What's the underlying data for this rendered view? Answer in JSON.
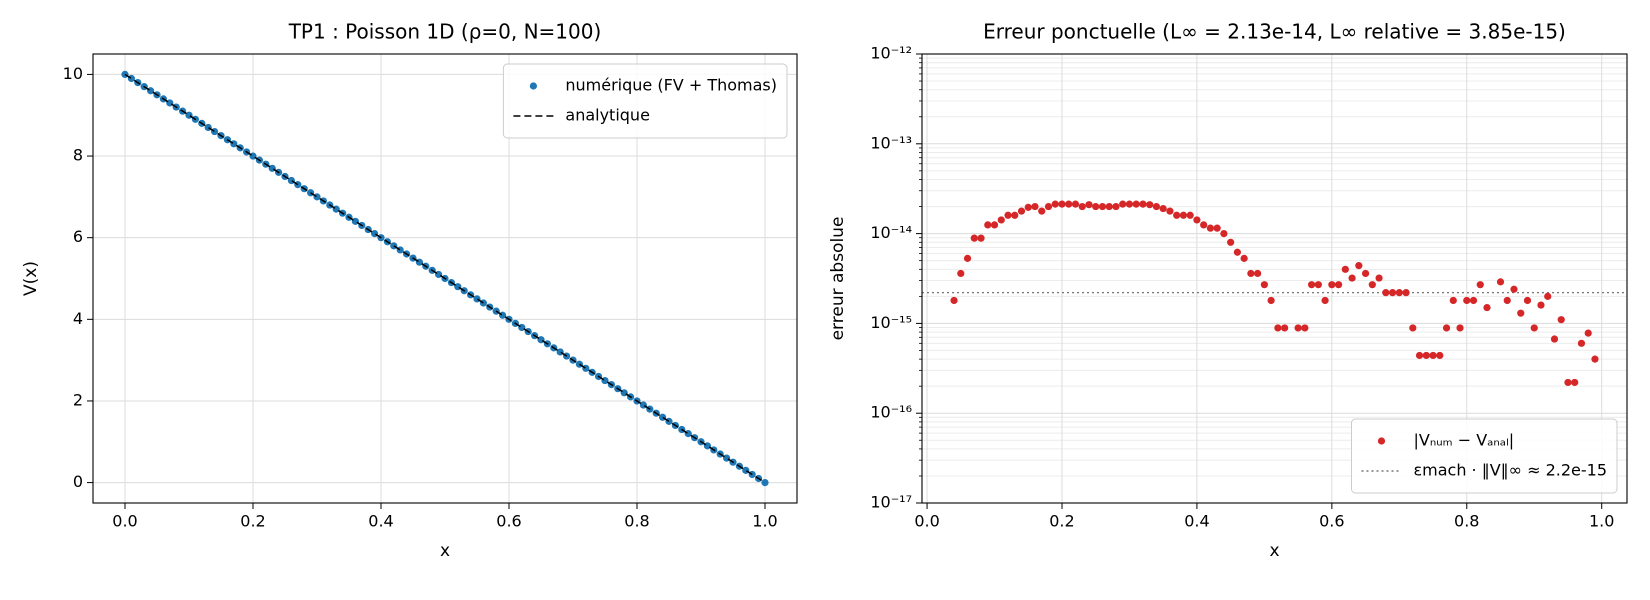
{
  "chart_data": [
    {
      "type": "line",
      "title": "TP1 : Poisson 1D (ρ=0, N=100)",
      "xlabel": "x",
      "ylabel": "V(x)",
      "xlim": [
        -0.05,
        1.05
      ],
      "ylim": [
        -0.5,
        10.5
      ],
      "xticks": [
        {
          "value": 0,
          "label": "0.0"
        },
        0.2,
        0.4,
        0.6,
        0.8,
        {
          "value": 1,
          "label": "1.0"
        }
      ],
      "yticks": [
        0,
        2,
        4,
        6,
        8,
        10
      ],
      "grid": true,
      "legend": "upper right",
      "series": [
        {
          "name": "numérique (FV + Thomas)",
          "color": "#1f77b4",
          "marker": "o",
          "linestyle": "none",
          "x": [
            0,
            0.01,
            0.02,
            0.03,
            0.04,
            0.05,
            0.06,
            0.07,
            0.08,
            0.09,
            0.1,
            0.11,
            0.12,
            0.13,
            0.14,
            0.15,
            0.16,
            0.17,
            0.18,
            0.19,
            0.2,
            0.21,
            0.22,
            0.23,
            0.24,
            0.25,
            0.26,
            0.27,
            0.28,
            0.29,
            0.3,
            0.31,
            0.32,
            0.33,
            0.34,
            0.35,
            0.36,
            0.37,
            0.38,
            0.39,
            0.4,
            0.41,
            0.42,
            0.43,
            0.44,
            0.45,
            0.46,
            0.47,
            0.48,
            0.49,
            0.5,
            0.51,
            0.52,
            0.53,
            0.54,
            0.55,
            0.56,
            0.57,
            0.58,
            0.59,
            0.6,
            0.61,
            0.62,
            0.63,
            0.64,
            0.65,
            0.66,
            0.67,
            0.68,
            0.69,
            0.7,
            0.71,
            0.72,
            0.73,
            0.74,
            0.75,
            0.76,
            0.77,
            0.78,
            0.79,
            0.8,
            0.81,
            0.82,
            0.83,
            0.84,
            0.85,
            0.86,
            0.87,
            0.88,
            0.89,
            0.9,
            0.91,
            0.92,
            0.93,
            0.94,
            0.95,
            0.96,
            0.97,
            0.98,
            0.99,
            1
          ],
          "values": [
            10,
            9.9,
            9.8,
            9.7,
            9.6,
            9.5,
            9.4,
            9.3,
            9.2,
            9.1,
            9,
            8.9,
            8.8,
            8.7,
            8.6,
            8.5,
            8.4,
            8.3,
            8.2,
            8.1,
            8,
            7.9,
            7.8,
            7.7,
            7.6,
            7.5,
            7.4,
            7.3,
            7.2,
            7.1,
            7,
            6.9,
            6.8,
            6.7,
            6.6,
            6.5,
            6.4,
            6.3,
            6.2,
            6.1,
            6,
            5.9,
            5.8,
            5.7,
            5.6,
            5.5,
            5.4,
            5.3,
            5.2,
            5.1,
            5,
            4.9,
            4.8,
            4.7,
            4.6,
            4.5,
            4.4,
            4.3,
            4.2,
            4.1,
            4,
            3.9,
            3.8,
            3.7,
            3.6,
            3.5,
            3.4,
            3.3,
            3.2,
            3.1,
            3,
            2.9,
            2.8,
            2.7,
            2.6,
            2.5,
            2.4,
            2.3,
            2.2,
            2.1,
            2,
            1.9,
            1.8,
            1.7,
            1.6,
            1.5,
            1.4,
            1.3,
            1.2,
            1.1,
            1,
            0.9,
            0.8,
            0.7,
            0.6,
            0.5,
            0.4,
            0.3,
            0.2,
            0.1,
            0
          ]
        },
        {
          "name": "analytique",
          "color": "#000000",
          "marker": "none",
          "linestyle": "--",
          "x": [
            0,
            1
          ],
          "values": [
            10,
            0
          ]
        }
      ]
    },
    {
      "type": "scatter",
      "title": "Erreur ponctuelle (L∞ = 2.13e-14, L∞ relative = 3.85e-15)",
      "xlabel": "x",
      "ylabel": "erreur absolue",
      "xlim": [
        -0.0075,
        1.0375
      ],
      "ylim": [
        1e-17,
        1e-12
      ],
      "log_y": true,
      "xticks": [
        {
          "value": 0,
          "label": "0.0"
        },
        0.2,
        0.4,
        0.6,
        0.8,
        {
          "value": 1,
          "label": "1.0"
        }
      ],
      "yticks": [
        {
          "value": 1e-17,
          "label": "10⁻¹⁷"
        },
        {
          "value": 1e-16,
          "label": "10⁻¹⁶"
        },
        {
          "value": 1e-15,
          "label": "10⁻¹⁵"
        },
        {
          "value": 1e-14,
          "label": "10⁻¹⁴"
        },
        {
          "value": 1e-13,
          "label": "10⁻¹³"
        },
        {
          "value": 1e-12,
          "label": "10⁻¹²"
        }
      ],
      "grid": true,
      "minor_grid": true,
      "legend": "lower right",
      "series": [
        {
          "name": "|Vₙᵤₘ − Vₐₙₐₗ|",
          "color": "#d62728",
          "marker": "o",
          "linestyle": "none",
          "x": [
            0.04,
            0.05,
            0.06,
            0.07,
            0.08,
            0.09,
            0.1,
            0.11,
            0.12,
            0.13,
            0.14,
            0.15,
            0.16,
            0.17,
            0.18,
            0.19,
            0.2,
            0.21,
            0.22,
            0.23,
            0.24,
            0.25,
            0.26,
            0.27,
            0.28,
            0.29,
            0.3,
            0.31,
            0.32,
            0.33,
            0.34,
            0.35,
            0.36,
            0.37,
            0.38,
            0.39,
            0.4,
            0.41,
            0.42,
            0.43,
            0.44,
            0.45,
            0.46,
            0.47,
            0.48,
            0.49,
            0.5,
            0.51,
            0.52,
            0.53,
            0.55,
            0.56,
            0.57,
            0.58,
            0.59,
            0.6,
            0.61,
            0.62,
            0.63,
            0.64,
            0.65,
            0.66,
            0.67,
            0.68,
            0.69,
            0.7,
            0.71,
            0.72,
            0.73,
            0.74,
            0.75,
            0.76,
            0.77,
            0.78,
            0.79,
            0.8,
            0.81,
            0.82,
            0.83,
            0.85,
            0.86,
            0.87,
            0.88,
            0.89,
            0.9,
            0.91,
            0.92,
            0.93,
            0.94,
            0.95,
            0.96,
            0.97,
            0.98,
            0.99
          ],
          "values": [
            1.8e-15,
            3.6e-15,
            5.3e-15,
            8.9e-15,
            8.9e-15,
            1.25e-14,
            1.25e-14,
            1.42e-14,
            1.6e-14,
            1.6e-14,
            1.78e-14,
            1.96e-14,
            2e-14,
            1.78e-14,
            2e-14,
            2.13e-14,
            2.13e-14,
            2.13e-14,
            2.13e-14,
            2e-14,
            2.1e-14,
            2e-14,
            2e-14,
            2e-14,
            2e-14,
            2.13e-14,
            2.13e-14,
            2.13e-14,
            2.13e-14,
            2.1e-14,
            2e-14,
            1.9e-14,
            1.78e-14,
            1.6e-14,
            1.6e-14,
            1.6e-14,
            1.42e-14,
            1.25e-14,
            1.15e-14,
            1.15e-14,
            1e-14,
            8e-15,
            6.2e-15,
            5.3e-15,
            3.6e-15,
            3.6e-15,
            2.7e-15,
            1.8e-15,
            8.9e-16,
            8.9e-16,
            8.9e-16,
            8.9e-16,
            2.7e-15,
            2.7e-15,
            1.8e-15,
            2.7e-15,
            2.7e-15,
            4e-15,
            3.2e-15,
            4.4e-15,
            3.6e-15,
            2.7e-15,
            3.2e-15,
            2.2e-15,
            2.2e-15,
            2.2e-15,
            2.2e-15,
            8.9e-16,
            4.4e-16,
            4.4e-16,
            4.4e-16,
            4.4e-16,
            8.9e-16,
            1.8e-15,
            8.9e-16,
            1.8e-15,
            1.8e-15,
            2.7e-15,
            1.5e-15,
            2.9e-15,
            1.8e-15,
            2.4e-15,
            1.3e-15,
            1.8e-15,
            8.9e-16,
            1.6e-15,
            2e-15,
            6.7e-16,
            1.1e-15,
            2.2e-16,
            2.2e-16,
            6e-16,
            7.8e-16,
            4e-16
          ]
        }
      ],
      "hlines": [
        {
          "name": "εmach · ‖V‖∞ ≈ 2.2e-15",
          "color": "#777777",
          "linestyle": ":",
          "value": 2.2e-15
        }
      ]
    }
  ]
}
